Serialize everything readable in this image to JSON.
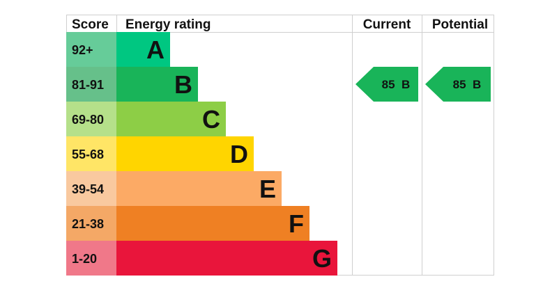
{
  "headers": {
    "score": "Score",
    "rating": "Energy rating",
    "current": "Current",
    "potential": "Potential"
  },
  "chart_data": {
    "type": "bar",
    "categories": [
      "A",
      "B",
      "C",
      "D",
      "E",
      "F",
      "G"
    ],
    "score_ranges": [
      "92+",
      "81-91",
      "69-80",
      "55-68",
      "39-54",
      "21-38",
      "1-20"
    ],
    "bar_colors": [
      "#00c781",
      "#19b459",
      "#8dce46",
      "#ffd500",
      "#fcaa65",
      "#ef8023",
      "#e9153b"
    ],
    "score_colors": [
      "#66cc99",
      "#66c08a",
      "#b5e08a",
      "#ffe566",
      "#f9c99f",
      "#f4a866",
      "#f07889"
    ],
    "current": {
      "score": 85,
      "band": "B",
      "label": "85  B",
      "color": "#19b459"
    },
    "potential": {
      "score": 85,
      "band": "B",
      "label": "85  B",
      "color": "#19b459"
    }
  }
}
